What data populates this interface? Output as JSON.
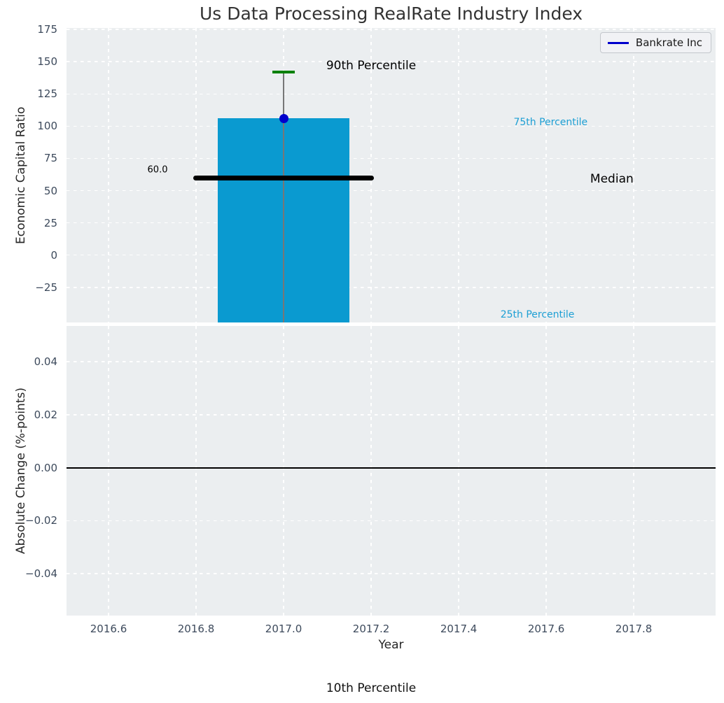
{
  "title": "Us Data Processing RealRate Industry Index",
  "legend": {
    "label": "Bankrate Inc"
  },
  "footer_annotation": "10th Percentile",
  "colors": {
    "figure_bg": "#ffffff",
    "axes_bg": "#ebeef0",
    "grid": "#ffffff",
    "bar": "#0a9ad0",
    "company_marker": "#0000cc",
    "legend_line": "#0000cc",
    "p90_cap": "#008000",
    "error_line": "#777777",
    "median_line": "#000000",
    "zero_line": "#000000",
    "tick_label": "#3d4a5c",
    "axis_label": "#262626",
    "title_color": "#333333",
    "percentile_label": "#1d9fd4",
    "annotation_black": "#000000"
  },
  "chart_data": {
    "type": "bar",
    "title": "Us Data Processing RealRate Industry Index",
    "xlabel": "Year",
    "xlim": [
      2016.504,
      2017.987
    ],
    "xticks": {
      "values": [
        2016.6,
        2016.8,
        2017.0,
        2017.2,
        2017.4,
        2017.6,
        2017.8
      ],
      "labels": [
        "2016.6",
        "2016.8",
        "2017.0",
        "2017.2",
        "2017.4",
        "2017.6",
        "2017.8"
      ]
    },
    "grid": "white dashed gridlines on light gray panel, no spines",
    "legend_position": "upper right",
    "top_panel": {
      "ylabel": "Economic Capital Ratio",
      "ylim": [
        -52.2,
        176.1
      ],
      "yticks": {
        "values": [
          175,
          150,
          125,
          100,
          75,
          50,
          25,
          0,
          -25
        ],
        "labels": [
          "175",
          "150",
          "125",
          "100",
          "75",
          "50",
          "25",
          "0",
          "−25"
        ]
      },
      "bar": {
        "center_x": 2017.0,
        "width_years": 0.3,
        "top_value": 106,
        "bottom": "clipped at axis bottom"
      },
      "company_point": {
        "name": "Bankrate Inc",
        "x": 2017.0,
        "value": 106
      },
      "median": {
        "value": 60.0,
        "label": "60.0",
        "x_start": 2016.8,
        "x_end": 2017.2
      },
      "percentiles": {
        "p90": 142,
        "p75": 106,
        "median": 60.0,
        "p25": "below visible axis (clipped)",
        "p10": "below visible axis (clipped)"
      },
      "error_bar": {
        "x": 2017.0,
        "high": 142,
        "low": "clipped at axis bottom"
      },
      "annotations": [
        {
          "text": "90th Percentile",
          "x": 2017.2,
          "y": 147,
          "color": "black",
          "size": 17
        },
        {
          "text": "75th Percentile",
          "x": 2017.61,
          "y": 103,
          "color": "cyan",
          "size": 14
        },
        {
          "text": "Median",
          "x": 2017.75,
          "y": 59,
          "color": "black",
          "size": 17
        },
        {
          "text": "25th Percentile",
          "x": 2017.58,
          "y": -46,
          "color": "cyan",
          "size": 14
        },
        {
          "text": "60.0",
          "x": 2016.712,
          "y": 66,
          "color": "black",
          "size": 13
        }
      ]
    },
    "bottom_panel": {
      "ylabel": "Absolute Change (%-points)",
      "ylim": [
        -0.0558,
        0.0535
      ],
      "yticks": {
        "values": [
          0.04,
          0.02,
          0.0,
          -0.02,
          -0.04
        ],
        "labels": [
          "0.04",
          "0.02",
          "0.00",
          "−0.02",
          "−0.04"
        ]
      },
      "zero_line_y": 0.0
    }
  }
}
